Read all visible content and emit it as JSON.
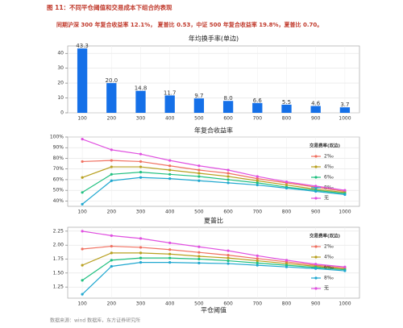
{
  "figure_title": "图 11：不同平仓阈值和交易成本下组合的表现",
  "note": "同期沪深 300 年复合收益率 12.1%， 夏普比 0.53，中证 500 年复合收益率 19.8%，夏普比 0.70。",
  "source": "数据来源：wind 数据库，东方证券研究所",
  "chart_data": [
    {
      "type": "bar",
      "title": "年均换手率(单边)",
      "categories": [
        "100",
        "200",
        "300",
        "400",
        "500",
        "600",
        "700",
        "800",
        "900",
        "1000"
      ],
      "values": [
        43.3,
        20.0,
        14.8,
        11.7,
        9.7,
        8.0,
        6.6,
        5.5,
        4.6,
        3.7
      ],
      "value_labels": [
        "43.3",
        "20.0",
        "14.8",
        "11.7",
        "9.7",
        "8.0",
        "6.6",
        "5.5",
        "4.6",
        "3.7"
      ],
      "color": "#1570e8",
      "ylim": [
        0,
        45
      ],
      "yticks": [
        0,
        10,
        20,
        30,
        40
      ],
      "grid": true
    },
    {
      "type": "line",
      "title": "年复合收益率",
      "categories": [
        "100",
        "200",
        "300",
        "400",
        "500",
        "600",
        "700",
        "800",
        "900",
        "1000"
      ],
      "legend_title": "交易费率(双边)",
      "legend": "right",
      "series": [
        {
          "name": "2‰",
          "color": "#f07060",
          "values": [
            77,
            78,
            77,
            73,
            69,
            66,
            61,
            57,
            53,
            49
          ]
        },
        {
          "name": "4‰",
          "color": "#b8a020",
          "values": [
            62,
            72,
            72,
            69,
            66,
            63,
            59,
            55,
            51,
            48
          ]
        },
        {
          "name": "6‰",
          "color": "#20c080",
          "values": [
            48,
            65,
            67,
            65,
            63,
            60,
            57,
            53,
            50,
            47
          ]
        },
        {
          "name": "8‰",
          "color": "#20a8d0",
          "values": [
            37,
            59,
            62,
            61,
            59,
            57,
            55,
            52,
            49,
            46
          ]
        },
        {
          "name": "无",
          "color": "#e050e0",
          "values": [
            98,
            88,
            84,
            78,
            73,
            69,
            63,
            58,
            54,
            50
          ]
        }
      ],
      "ylim": [
        35,
        100
      ],
      "yticks": [
        {
          "value": 40,
          "label": "40%"
        },
        {
          "value": 50,
          "label": "50%"
        },
        {
          "value": 60,
          "label": "60%"
        },
        {
          "value": 70,
          "label": "70%"
        },
        {
          "value": 80,
          "label": "80%"
        },
        {
          "value": 90,
          "label": "90%"
        },
        {
          "value": 100,
          "label": "100%"
        }
      ],
      "grid": true
    },
    {
      "type": "line",
      "title": "夏普比",
      "x_label": "平仓阈值",
      "categories": [
        "100",
        "200",
        "300",
        "400",
        "500",
        "600",
        "700",
        "800",
        "900",
        "1000"
      ],
      "legend_title": "交易费率(双边)",
      "legend": "right",
      "series": [
        {
          "name": "2‰",
          "color": "#f07060",
          "values": [
            1.93,
            1.98,
            1.96,
            1.92,
            1.87,
            1.82,
            1.76,
            1.7,
            1.64,
            1.59
          ]
        },
        {
          "name": "4‰",
          "color": "#b8a020",
          "values": [
            1.64,
            1.86,
            1.86,
            1.84,
            1.8,
            1.77,
            1.72,
            1.67,
            1.62,
            1.57
          ]
        },
        {
          "name": "6‰",
          "color": "#20c080",
          "values": [
            1.37,
            1.73,
            1.77,
            1.77,
            1.75,
            1.72,
            1.68,
            1.64,
            1.6,
            1.56
          ]
        },
        {
          "name": "8‰",
          "color": "#20a8d0",
          "values": [
            1.12,
            1.62,
            1.69,
            1.69,
            1.68,
            1.67,
            1.64,
            1.61,
            1.58,
            1.54
          ]
        },
        {
          "name": "无",
          "color": "#e050e0",
          "values": [
            2.25,
            2.17,
            2.12,
            2.04,
            1.97,
            1.9,
            1.81,
            1.73,
            1.66,
            1.61
          ]
        }
      ],
      "ylim": [
        1.05,
        2.32
      ],
      "yticks": [
        1.25,
        {
          "value": 1.5,
          "label": "1.50"
        },
        1.75,
        {
          "value": 2,
          "label": "2.00"
        },
        2.25
      ],
      "grid": true
    }
  ]
}
